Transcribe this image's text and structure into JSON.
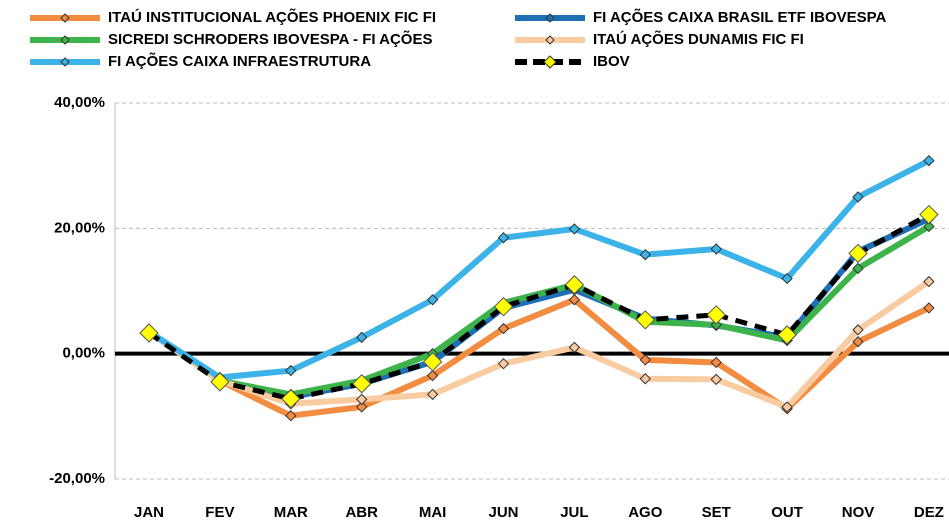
{
  "chart_data": {
    "type": "line",
    "categories": [
      "JAN",
      "FEV",
      "MAR",
      "ABR",
      "MAI",
      "JUN",
      "JUL",
      "AGO",
      "SET",
      "OUT",
      "NOV",
      "DEZ"
    ],
    "series": [
      {
        "name": "ITAÚ INSTITUCIONAL AÇÕES PHOENIX FIC FI",
        "color": "#f28c40",
        "marker_color": "#f28c40",
        "line_style": "solid",
        "values": [
          3.5,
          -4.3,
          -9.9,
          -8.5,
          -3.5,
          4.0,
          8.6,
          -1.0,
          -1.4,
          -8.8,
          1.9,
          7.3
        ]
      },
      {
        "name": "FI AÇÕES CAIXA BRASIL ETF IBOVESPA",
        "color": "#1f6fb5",
        "marker_color": "#1f6fb5",
        "line_style": "solid",
        "values": [
          3.5,
          -4.3,
          -6.9,
          -4.8,
          -1.3,
          7.3,
          10.2,
          5.6,
          4.5,
          2.6,
          16.3,
          21.5
        ]
      },
      {
        "name": "SICREDI SCHRODERS IBOVESPA - FI AÇÕES",
        "color": "#3cb44b",
        "marker_color": "#3cb44b",
        "line_style": "solid",
        "values": [
          3.5,
          -4.3,
          -6.5,
          -4.3,
          0.0,
          8.1,
          11.0,
          5.1,
          4.6,
          2.1,
          13.6,
          20.3
        ]
      },
      {
        "name": "ITAÚ AÇÕES DUNAMIS FIC FI",
        "color": "#f8cba0",
        "marker_color": "#f8cba0",
        "line_style": "solid",
        "values": [
          3.5,
          -4.3,
          -8.0,
          -7.3,
          -6.5,
          -1.6,
          1.0,
          -4.0,
          -4.1,
          -8.5,
          3.8,
          11.5
        ]
      },
      {
        "name": "FI AÇÕES CAIXA INFRAESTRUTURA",
        "color": "#3cb3e8",
        "marker_color": "#3cb3e8",
        "line_style": "solid",
        "values": [
          3.5,
          -3.8,
          -2.7,
          2.6,
          8.6,
          18.5,
          19.9,
          15.8,
          16.7,
          12.0,
          25.0,
          30.8
        ]
      },
      {
        "name": "IBOV",
        "color": "#000000",
        "marker_color": "#ffff00",
        "line_style": "dashed",
        "values": [
          3.3,
          -4.5,
          -7.2,
          -4.8,
          -1.3,
          7.5,
          11.0,
          5.4,
          6.2,
          3.0,
          16.0,
          22.2
        ]
      }
    ],
    "ylim": [
      -20,
      40
    ],
    "yticks": [
      {
        "value": -20,
        "label": "-20,00%"
      },
      {
        "value": 0,
        "label": "0,00%"
      },
      {
        "value": 20,
        "label": "20,00%"
      },
      {
        "value": 40,
        "label": "40,00%"
      }
    ],
    "grid": true,
    "legend": "top"
  }
}
